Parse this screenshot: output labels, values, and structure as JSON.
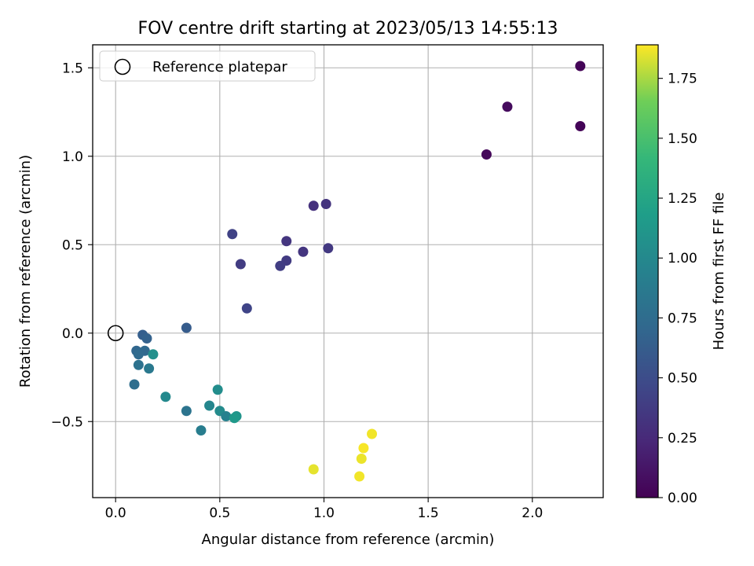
{
  "chart_data": {
    "type": "scatter",
    "title": "FOV centre drift starting at 2023/05/13 14:55:13",
    "xlabel": "Angular distance from reference (arcmin)",
    "ylabel": "Rotation from reference (arcmin)",
    "xlim": [
      -0.11,
      2.34
    ],
    "ylim": [
      -0.93,
      1.63
    ],
    "xticks": [
      0.0,
      0.5,
      1.0,
      1.5,
      2.0
    ],
    "xtick_labels": [
      "0.0",
      "0.5",
      "1.0",
      "1.5",
      "2.0"
    ],
    "yticks": [
      -0.5,
      0.0,
      0.5,
      1.0,
      1.5
    ],
    "ytick_labels": [
      "−0.5",
      "0.0",
      "0.5",
      "1.0",
      "1.5"
    ],
    "grid": true,
    "legend": {
      "placement": "upper-left",
      "entries": [
        {
          "label": "Reference platepar",
          "marker": "open-circle"
        }
      ]
    },
    "reference_point": {
      "x": 0.0,
      "y": 0.0
    },
    "colorbar": {
      "label": "Hours from first FF file",
      "colormap": "viridis",
      "range": [
        0.0,
        1.89
      ],
      "ticks": [
        0.0,
        0.25,
        0.5,
        0.75,
        1.0,
        1.25,
        1.5,
        1.75
      ],
      "tick_labels": [
        "0.00",
        "0.25",
        "0.50",
        "0.75",
        "1.00",
        "1.25",
        "1.50",
        "1.75"
      ]
    },
    "points": [
      {
        "x": 2.23,
        "y": 1.51,
        "c": 0.02
      },
      {
        "x": 1.88,
        "y": 1.28,
        "c": 0.06
      },
      {
        "x": 2.23,
        "y": 1.17,
        "c": 0.02
      },
      {
        "x": 1.78,
        "y": 1.01,
        "c": 0.04
      },
      {
        "x": 0.95,
        "y": 0.72,
        "c": 0.3
      },
      {
        "x": 1.01,
        "y": 0.73,
        "c": 0.32
      },
      {
        "x": 0.56,
        "y": 0.56,
        "c": 0.42
      },
      {
        "x": 0.82,
        "y": 0.52,
        "c": 0.34
      },
      {
        "x": 1.02,
        "y": 0.48,
        "c": 0.36
      },
      {
        "x": 0.9,
        "y": 0.46,
        "c": 0.33
      },
      {
        "x": 0.82,
        "y": 0.41,
        "c": 0.37
      },
      {
        "x": 0.6,
        "y": 0.39,
        "c": 0.38
      },
      {
        "x": 0.79,
        "y": 0.38,
        "c": 0.39
      },
      {
        "x": 0.63,
        "y": 0.14,
        "c": 0.44
      },
      {
        "x": 0.34,
        "y": 0.03,
        "c": 0.62
      },
      {
        "x": 0.13,
        "y": -0.01,
        "c": 0.64
      },
      {
        "x": 0.15,
        "y": -0.03,
        "c": 0.66
      },
      {
        "x": 0.1,
        "y": -0.1,
        "c": 0.7
      },
      {
        "x": 0.14,
        "y": -0.1,
        "c": 0.72
      },
      {
        "x": 0.11,
        "y": -0.12,
        "c": 0.74
      },
      {
        "x": 0.18,
        "y": -0.12,
        "c": 1.06
      },
      {
        "x": 0.11,
        "y": -0.18,
        "c": 0.8
      },
      {
        "x": 0.16,
        "y": -0.2,
        "c": 0.86
      },
      {
        "x": 0.09,
        "y": -0.29,
        "c": 0.76
      },
      {
        "x": 0.49,
        "y": -0.32,
        "c": 1.04
      },
      {
        "x": 0.24,
        "y": -0.36,
        "c": 1.0
      },
      {
        "x": 0.45,
        "y": -0.41,
        "c": 0.98
      },
      {
        "x": 0.34,
        "y": -0.44,
        "c": 0.82
      },
      {
        "x": 0.5,
        "y": -0.44,
        "c": 1.02
      },
      {
        "x": 0.53,
        "y": -0.47,
        "c": 0.94
      },
      {
        "x": 0.58,
        "y": -0.47,
        "c": 1.1
      },
      {
        "x": 0.57,
        "y": -0.48,
        "c": 1.14
      },
      {
        "x": 0.41,
        "y": -0.55,
        "c": 0.9
      },
      {
        "x": 1.23,
        "y": -0.57,
        "c": 1.87
      },
      {
        "x": 1.19,
        "y": -0.65,
        "c": 1.88
      },
      {
        "x": 1.18,
        "y": -0.71,
        "c": 1.86
      },
      {
        "x": 0.95,
        "y": -0.77,
        "c": 1.85
      },
      {
        "x": 1.17,
        "y": -0.81,
        "c": 1.87
      }
    ]
  }
}
